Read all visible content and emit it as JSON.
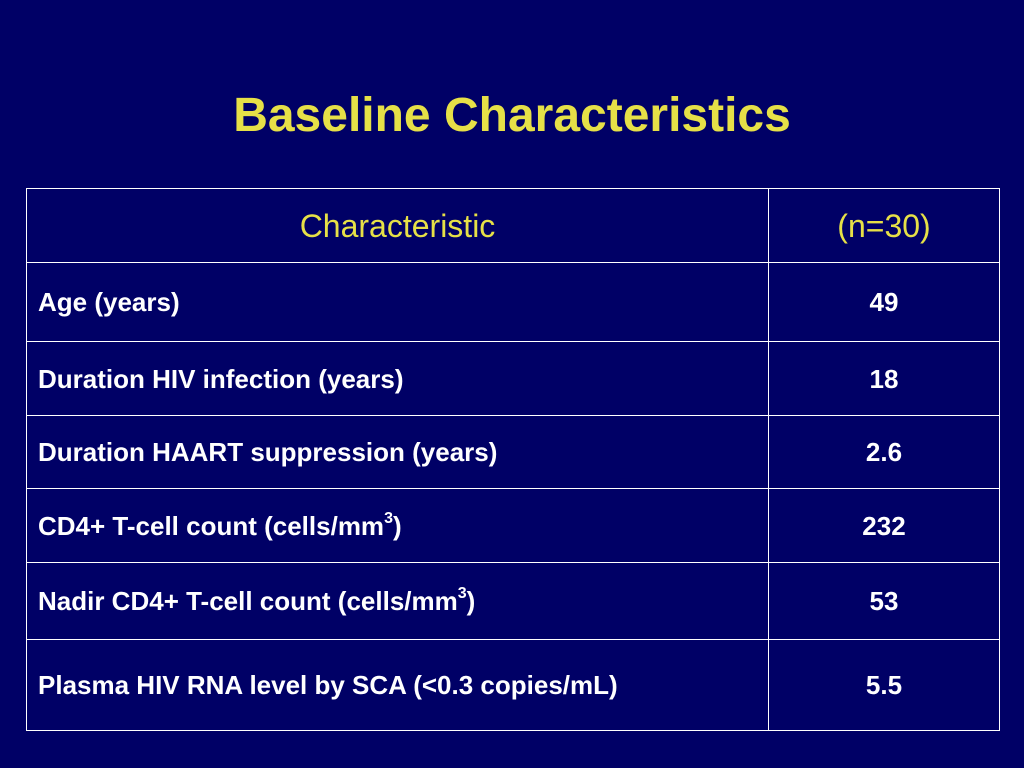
{
  "title": "Baseline Characteristics",
  "table": {
    "headers": [
      "Characteristic",
      "(n=30)"
    ],
    "rows": [
      {
        "label": "Age (years)",
        "value": "49"
      },
      {
        "label": "Duration HIV infection (years)",
        "value": "18"
      },
      {
        "label": "Duration HAART suppression (years)",
        "value": "2.6"
      },
      {
        "label": "CD4+ T-cell count (cells/mm",
        "sup": "3",
        "suffix": ")",
        "value": "232"
      },
      {
        "label": "Nadir CD4+ T-cell count (cells/mm",
        "sup": "3",
        "suffix": ")",
        "value": "53"
      },
      {
        "label": "Plasma HIV RNA level by SCA (<0.3 copies/mL)",
        "value": "5.5"
      }
    ]
  },
  "colors": {
    "background": "#000066",
    "title": "#e6e047",
    "header_text": "#e6e047",
    "body_text": "#ffffff",
    "border": "#ffffff"
  }
}
